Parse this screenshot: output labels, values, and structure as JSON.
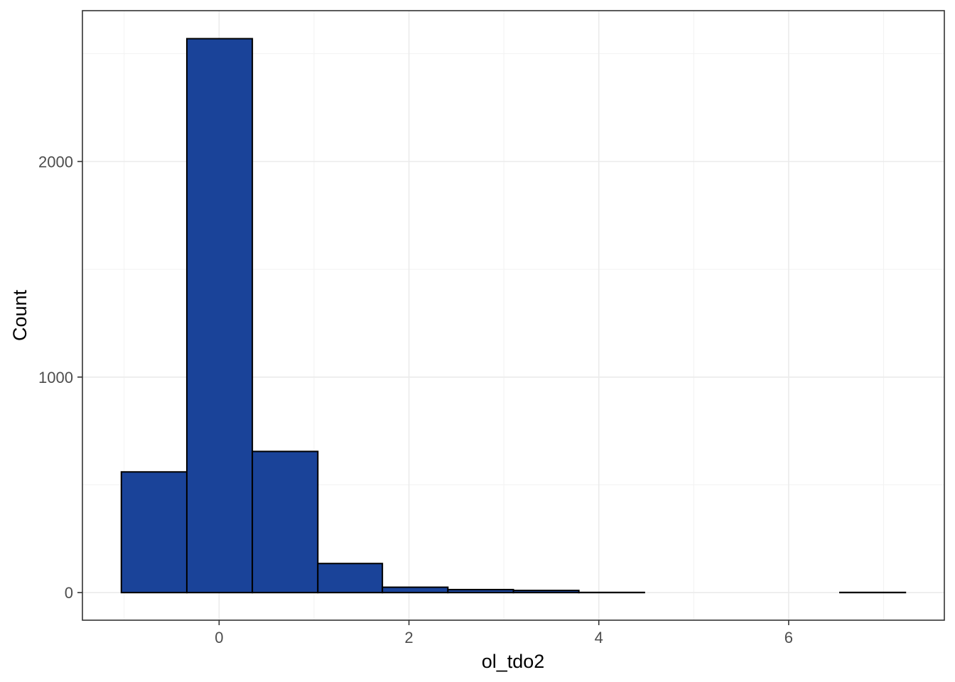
{
  "chart_data": {
    "type": "bar",
    "title": "",
    "xlabel": "ol_tdo2",
    "ylabel": "Count",
    "bins": [
      {
        "x0": -1.03,
        "x1": -0.34,
        "count": 560
      },
      {
        "x0": -0.34,
        "x1": 0.35,
        "count": 2570
      },
      {
        "x0": 0.35,
        "x1": 1.04,
        "count": 655
      },
      {
        "x0": 1.04,
        "x1": 1.72,
        "count": 135
      },
      {
        "x0": 1.72,
        "x1": 2.41,
        "count": 25
      },
      {
        "x0": 2.41,
        "x1": 3.1,
        "count": 14
      },
      {
        "x0": 3.1,
        "x1": 3.79,
        "count": 10
      },
      {
        "x0": 3.79,
        "x1": 4.48,
        "count": 1
      },
      {
        "x0": 4.48,
        "x1": 5.16,
        "count": 0
      },
      {
        "x0": 5.16,
        "x1": 5.85,
        "count": 0
      },
      {
        "x0": 5.85,
        "x1": 6.54,
        "count": 0
      },
      {
        "x0": 6.54,
        "x1": 7.23,
        "count": 1
      }
    ],
    "xlim": [
      -1.44,
      7.64
    ],
    "ylim": [
      -128,
      2700
    ],
    "x_ticks": [
      0,
      2,
      4,
      6
    ],
    "x_tick_labels": [
      "0",
      "2",
      "4",
      "6"
    ],
    "y_ticks": [
      0,
      1000,
      2000
    ],
    "y_tick_labels": [
      "0",
      "1000",
      "2000"
    ],
    "x_minor_ticks": [
      -1,
      1,
      3,
      5,
      7
    ],
    "y_minor_ticks": [
      500,
      1500,
      2500
    ],
    "grid": true,
    "legend": "none",
    "fill_color": "#1a4399",
    "edge_color": "#000000"
  }
}
